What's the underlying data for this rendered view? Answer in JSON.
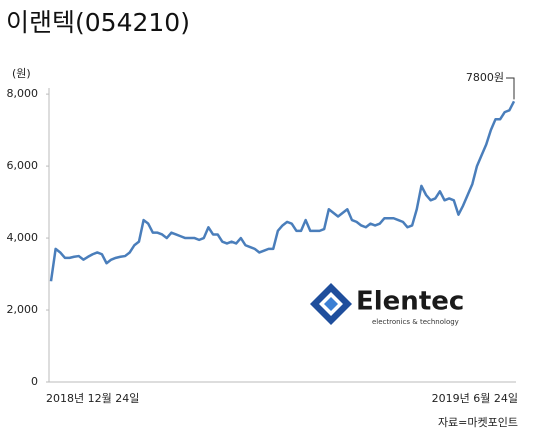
{
  "chart_data": {
    "type": "line",
    "title": "이랜텍(054210)",
    "y_unit": "(원)",
    "categories": [
      "2018년 12월 24일",
      null,
      null,
      null,
      null,
      null,
      null,
      null,
      null,
      null,
      null,
      null,
      null,
      null,
      null,
      null,
      null,
      null,
      null,
      null,
      null,
      null,
      null,
      null,
      null,
      null,
      null,
      null,
      null,
      null,
      null,
      null,
      null,
      null,
      null,
      null,
      null,
      null,
      null,
      null,
      null,
      null,
      null,
      null,
      null,
      null,
      null,
      null,
      null,
      null,
      null,
      null,
      null,
      null,
      null,
      null,
      null,
      null,
      null,
      null,
      null,
      null,
      null,
      null,
      null,
      null,
      null,
      null,
      null,
      null,
      null,
      null,
      null,
      null,
      null,
      null,
      null,
      null,
      null,
      null,
      null,
      null,
      null,
      null,
      null,
      null,
      null,
      null,
      null,
      null,
      null,
      null,
      null,
      null,
      null,
      null,
      null,
      null,
      null,
      null,
      "2019년 6월 24일"
    ],
    "series": [
      {
        "name": "이랜텍",
        "color": "#4a7ebb",
        "values": [
          2800,
          3700,
          3600,
          3450,
          3450,
          3480,
          3500,
          3400,
          3480,
          3550,
          3600,
          3550,
          3300,
          3400,
          3450,
          3480,
          3500,
          3600,
          3800,
          3900,
          4500,
          4400,
          4150,
          4150,
          4100,
          4000,
          4150,
          4100,
          4050,
          4000,
          4000,
          4000,
          3950,
          4000,
          4300,
          4100,
          4100,
          3900,
          3850,
          3900,
          3850,
          4000,
          3800,
          3750,
          3700,
          3600,
          3650,
          3700,
          3700,
          4200,
          4350,
          4450,
          4400,
          4200,
          4200,
          4500,
          4200,
          4200,
          4200,
          4250,
          4800,
          4700,
          4600,
          4700,
          4800,
          4500,
          4450,
          4350,
          4300,
          4400,
          4350,
          4400,
          4550,
          4550,
          4550,
          4500,
          4450,
          4300,
          4350,
          4800,
          5450,
          5200,
          5050,
          5100,
          5300,
          5050,
          5100,
          5050,
          4650,
          4900,
          5200,
          5500,
          6000,
          6300,
          6600,
          7000,
          7300,
          7300,
          7500,
          7550,
          7800
        ]
      }
    ],
    "ylim": [
      0,
      8170
    ],
    "yticks": [
      0,
      {
        "value": 2000,
        "label": "2,000"
      },
      {
        "value": 4000,
        "label": "4,000"
      },
      {
        "value": 6000,
        "label": "6,000"
      },
      {
        "value": 8000,
        "label": "8,000"
      }
    ],
    "annotation": "7800원",
    "logo": {
      "name": "Elentec",
      "tagline": "electronics & technology"
    },
    "source": "자료=마켓포인트"
  }
}
